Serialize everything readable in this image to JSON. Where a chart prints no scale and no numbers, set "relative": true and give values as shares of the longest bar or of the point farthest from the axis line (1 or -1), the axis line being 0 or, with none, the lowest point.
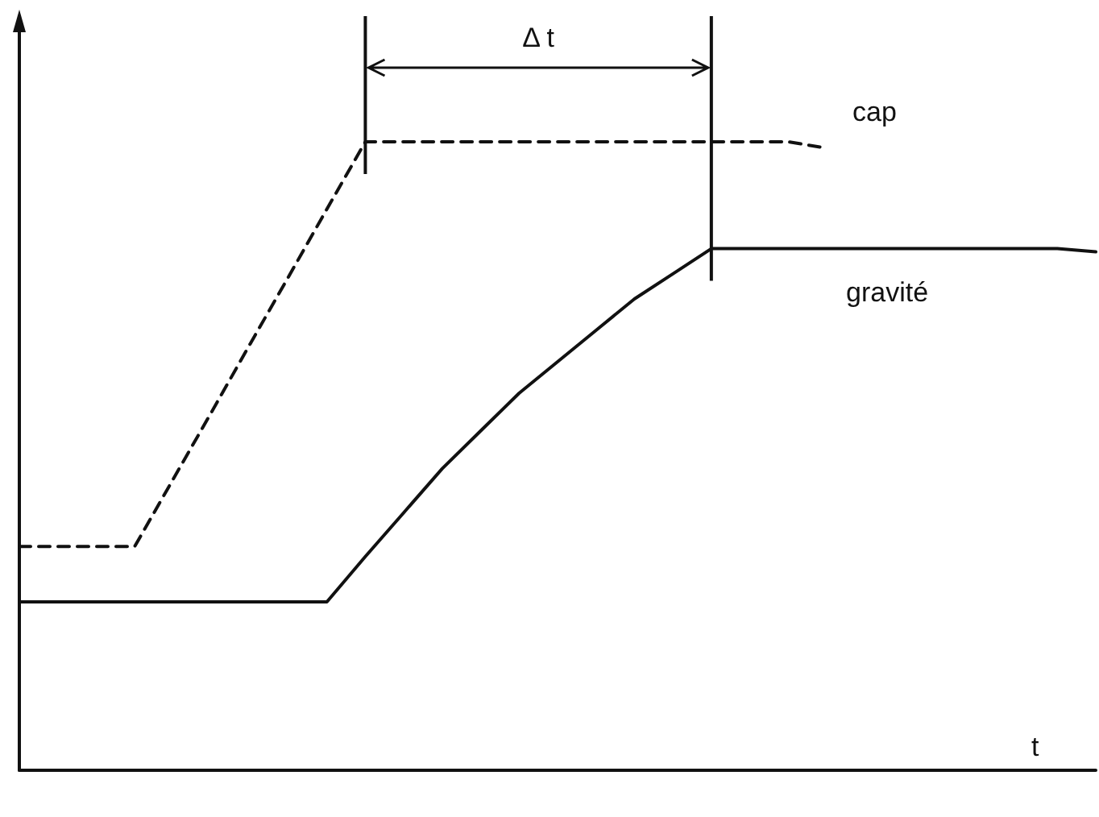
{
  "chart_data": {
    "type": "line",
    "relative": true,
    "xlabel": "t",
    "annotations": [
      "Δ t"
    ],
    "tick_labels": false,
    "grid": false,
    "legend": false,
    "marker": "none",
    "categories": [
      null,
      null,
      null,
      null,
      null,
      null,
      null,
      null,
      null,
      null,
      null,
      null,
      null,
      null,
      null,
      null,
      null,
      null,
      null,
      null,
      null,
      null,
      null,
      null,
      null,
      null,
      null,
      null,
      null
    ],
    "series": [
      {
        "name": "cap",
        "color": "#111111",
        "line_style": "dashed",
        "values": [
          0.356,
          0.356,
          0.356,
          0.356,
          0.463,
          0.57,
          0.678,
          0.785,
          0.893,
          1,
          1,
          1,
          1,
          1,
          1,
          1,
          1,
          1,
          1,
          1,
          1,
          0.99,
          null,
          null,
          null,
          null,
          null,
          null,
          null
        ]
      },
      {
        "name": "gravité",
        "color": "#111111",
        "line_style": "solid",
        "values": [
          0.268,
          0.268,
          0.268,
          0.268,
          0.268,
          0.268,
          0.268,
          0.268,
          0.268,
          0.34,
          0.41,
          0.48,
          0.54,
          0.6,
          0.65,
          0.7,
          0.75,
          0.79,
          0.83,
          0.83,
          0.83,
          0.83,
          0.83,
          0.83,
          0.83,
          0.83,
          0.83,
          0.83,
          0.825
        ]
      }
    ]
  }
}
